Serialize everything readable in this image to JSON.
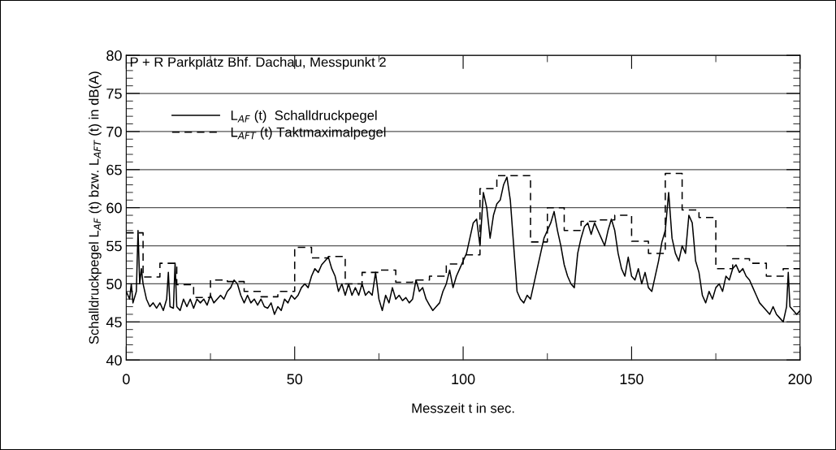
{
  "chart_data": {
    "type": "line",
    "title": "P + R Parkplatz Bhf. Dachau, Messpunkt 2",
    "xlabel": "Messzeit t in sec.",
    "ylabel": "Schalldruckpegel L$_{AF}$ (t) bzw. L$_{AFT}$ (t) in dB(A)",
    "xlim": [
      0,
      200
    ],
    "ylim": [
      40,
      80
    ],
    "xticks": [
      0,
      {
        "value": 25,
        "label": null
      },
      50,
      {
        "value": 75,
        "label": null
      },
      100,
      {
        "value": 125,
        "label": null
      },
      150,
      {
        "value": 175,
        "label": null
      },
      200
    ],
    "yticks": [
      40,
      {
        "value": 41,
        "label": null
      },
      {
        "value": 42,
        "label": null
      },
      {
        "value": 43,
        "label": null
      },
      {
        "value": 44,
        "label": null
      },
      45,
      {
        "value": 46,
        "label": null
      },
      {
        "value": 47,
        "label": null
      },
      {
        "value": 48,
        "label": null
      },
      {
        "value": 49,
        "label": null
      },
      50,
      {
        "value": 51,
        "label": null
      },
      {
        "value": 52,
        "label": null
      },
      {
        "value": 53,
        "label": null
      },
      {
        "value": 54,
        "label": null
      },
      55,
      {
        "value": 56,
        "label": null
      },
      {
        "value": 57,
        "label": null
      },
      {
        "value": 58,
        "label": null
      },
      {
        "value": 59,
        "label": null
      },
      60,
      {
        "value": 61,
        "label": null
      },
      {
        "value": 62,
        "label": null
      },
      {
        "value": 63,
        "label": null
      },
      {
        "value": 64,
        "label": null
      },
      65,
      {
        "value": 66,
        "label": null
      },
      {
        "value": 67,
        "label": null
      },
      {
        "value": 68,
        "label": null
      },
      {
        "value": 69,
        "label": null
      },
      70,
      {
        "value": 71,
        "label": null
      },
      {
        "value": 72,
        "label": null
      },
      {
        "value": 73,
        "label": null
      },
      {
        "value": 74,
        "label": null
      },
      75,
      {
        "value": 76,
        "label": null
      },
      {
        "value": 77,
        "label": null
      },
      {
        "value": 78,
        "label": null
      },
      {
        "value": 79,
        "label": null
      },
      80
    ],
    "grid": "y",
    "legend": "top left",
    "series": [
      {
        "name": "L$_{AF}$ (t)  Schalldruckpegel",
        "color": "#000000",
        "line_style": "solid",
        "x": [
          0,
          1,
          1.5,
          2,
          3,
          3.5,
          4,
          4.5,
          5,
          6,
          7,
          8,
          9,
          10,
          11,
          12,
          12.5,
          13,
          14,
          14.5,
          15,
          16,
          17,
          18,
          19,
          20,
          21,
          22,
          23,
          24,
          25,
          26,
          27,
          28,
          29,
          30,
          31,
          32,
          33,
          34,
          35,
          36,
          37,
          38,
          39,
          40,
          41,
          42,
          43,
          44,
          45,
          46,
          47,
          48,
          49,
          50,
          51,
          52,
          53,
          54,
          55,
          56,
          57,
          58,
          59,
          60,
          61,
          62,
          63,
          64,
          65,
          66,
          67,
          68,
          69,
          70,
          71,
          72,
          73,
          74,
          75,
          76,
          77,
          78,
          79,
          80,
          81,
          82,
          83,
          84,
          85,
          86,
          87,
          88,
          89,
          90,
          91,
          92,
          93,
          94,
          95,
          96,
          97,
          98,
          99,
          100,
          101,
          102,
          103,
          104,
          105,
          106,
          107,
          108,
          109,
          110,
          111,
          112,
          113,
          114,
          115,
          116,
          117,
          118,
          119,
          120,
          121,
          122,
          123,
          124,
          125,
          126,
          127,
          128,
          129,
          130,
          131,
          132,
          133,
          134,
          135,
          136,
          137,
          138,
          139,
          140,
          141,
          142,
          143,
          144,
          145,
          146,
          147,
          148,
          149,
          150,
          151,
          152,
          153,
          154,
          155,
          156,
          157,
          158,
          159,
          160,
          161,
          162,
          163,
          164,
          165,
          166,
          167,
          168,
          169,
          170,
          171,
          172,
          173,
          174,
          175,
          176,
          177,
          178,
          179,
          180,
          181,
          182,
          183,
          184,
          185,
          186,
          187,
          188,
          189,
          190,
          191,
          192,
          193,
          194,
          195,
          196,
          196.5,
          197,
          198,
          199,
          200
        ],
        "values": [
          49,
          48,
          50,
          47.5,
          49,
          57,
          50,
          52,
          50,
          48,
          47,
          47.5,
          46.8,
          47.5,
          46.5,
          48,
          51.5,
          47,
          46.8,
          52.7,
          47,
          46.5,
          48,
          47,
          48,
          46.8,
          48,
          47.5,
          48,
          47.2,
          48.5,
          47.5,
          48,
          48.5,
          48,
          49,
          49.5,
          50.5,
          50,
          48.5,
          47.5,
          48.5,
          47.5,
          48,
          47.2,
          48,
          47,
          46.8,
          47.5,
          46,
          47,
          46.5,
          48,
          47.5,
          48.5,
          48,
          48.5,
          49.5,
          50,
          49.5,
          51,
          52,
          51.5,
          52.5,
          53,
          53.5,
          52,
          51,
          49,
          50,
          48.5,
          50,
          48.5,
          49.5,
          48.5,
          50,
          48.5,
          49,
          48.5,
          51.5,
          48,
          46.5,
          48.5,
          47.5,
          49.5,
          48,
          48.5,
          47.8,
          48.2,
          47.5,
          48,
          50.5,
          49,
          49.5,
          48,
          47.2,
          46.5,
          47,
          47.5,
          49,
          50,
          51.8,
          49.5,
          51,
          52,
          53,
          54,
          56,
          58,
          58.5,
          55,
          62,
          60,
          56,
          59,
          60.5,
          61,
          63,
          64,
          61,
          55,
          49,
          48,
          47.5,
          48.5,
          48,
          50,
          52,
          54,
          56,
          57,
          58,
          59.5,
          57,
          55,
          52.5,
          51,
          50,
          49.5,
          54,
          56,
          57.5,
          58,
          56.5,
          58,
          57,
          56,
          55,
          57,
          58.5,
          57,
          54,
          52,
          51,
          53.5,
          51,
          50.5,
          52,
          50,
          51.5,
          49.5,
          49,
          51,
          53,
          55.5,
          57,
          62,
          56,
          54,
          53,
          55,
          54,
          59,
          58,
          53,
          51.5,
          48.5,
          47.5,
          49,
          48,
          49.5,
          50,
          49,
          51,
          50.5,
          52,
          52.5,
          51.5,
          52,
          51,
          50.5,
          49.5,
          48.5,
          47.5,
          47,
          46.5,
          46,
          47,
          46,
          45.5,
          45,
          47,
          51.5,
          47,
          46.5,
          46,
          46.5
        ]
      },
      {
        "name": "L$_{AFT}$ (t) Taktmaximalpegel",
        "type": "step",
        "color": "#000000",
        "line_style": "dashed",
        "x": [
          0,
          5,
          10,
          15,
          20,
          25,
          30,
          35,
          40,
          45,
          50,
          55,
          60,
          65,
          70,
          75,
          80,
          85,
          90,
          95,
          100,
          105,
          110,
          115,
          120,
          125,
          130,
          135,
          140,
          145,
          150,
          155,
          160,
          165,
          170,
          175,
          180,
          185,
          190,
          195,
          200
        ],
        "values": [
          56.7,
          50.9,
          52.7,
          49.9,
          48.2,
          50.5,
          50.3,
          49.0,
          48.3,
          49.0,
          54.8,
          53.4,
          53.6,
          50.0,
          51.5,
          51.8,
          50.2,
          50.5,
          51.0,
          52.6,
          53.8,
          62.5,
          64.2,
          64.2,
          55.5,
          60.0,
          57.0,
          58.2,
          58.4,
          59.0,
          55.6,
          54.0,
          64.5,
          59.7,
          58.7,
          52.0,
          53.3,
          52.7,
          51.0,
          52.0,
          52.0
        ]
      }
    ]
  }
}
